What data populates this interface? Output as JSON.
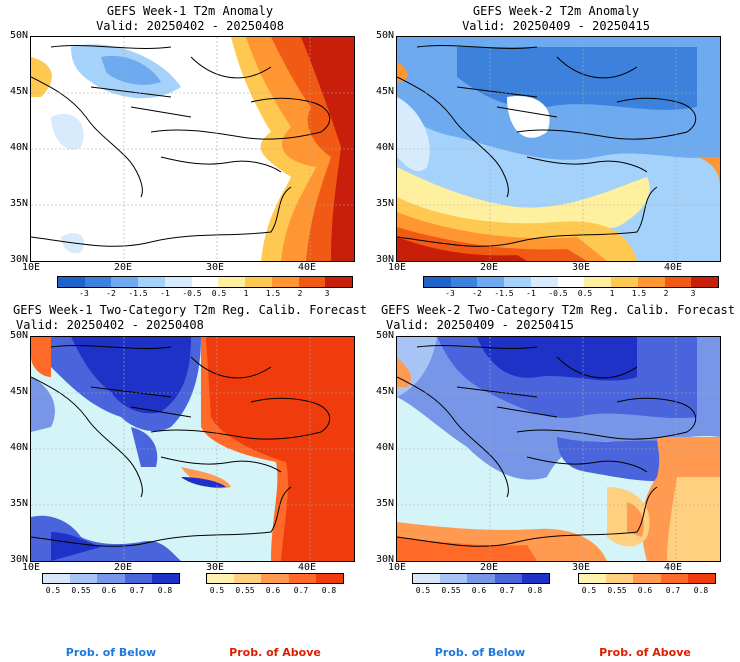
{
  "panels": [
    {
      "title": "GEFS Week-1 T2m Anomaly",
      "valid": "Valid: 20250402 - 20250408"
    },
    {
      "title": "GEFS Week-2 T2m Anomaly",
      "valid": "Valid: 20250409 - 20250415"
    },
    {
      "title": "GEFS Week-1 Two-Category T2m Reg. Calib. Forecast",
      "valid": "Valid: 20250402 - 20250408"
    },
    {
      "title": "GEFS Week-2 Two-Category T2m Reg. Calib. Forecast",
      "valid": "Valid: 20250409 - 20250415"
    }
  ],
  "axes": {
    "lat_labels": [
      "50N",
      "45N",
      "40N",
      "35N",
      "30N"
    ],
    "lon_labels": [
      "10E",
      "20E",
      "30E",
      "40E"
    ]
  },
  "anomaly_colorbar": {
    "labels": [
      "-3",
      "-2",
      "-1.5",
      "-1",
      "-0.5",
      "0.5",
      "1",
      "1.5",
      "2",
      "3"
    ],
    "colors": [
      "#1e64c8",
      "#3c82dc",
      "#6eaaf0",
      "#a5d2fa",
      "#d7ebfc",
      "#ffffff",
      "#fff0a0",
      "#ffc850",
      "#ff9632",
      "#f05a14",
      "#c81e0a"
    ]
  },
  "prob_colorbar": {
    "below_labels": [
      "0.5",
      "0.55",
      "0.6",
      "0.7",
      "0.8"
    ],
    "above_labels": [
      "0.5",
      "0.55",
      "0.6",
      "0.7",
      "0.8"
    ],
    "below_colors": [
      "#d8e6fa",
      "#a8c4f4",
      "#7896e8",
      "#4a64dc",
      "#1e32c8"
    ],
    "above_colors": [
      "#fff2b0",
      "#ffd080",
      "#ff9a50",
      "#ff6a28",
      "#f03c0c"
    ],
    "below_label": "Prob. of Below",
    "above_label": "Prob. of Above"
  },
  "colors": {
    "sea_prob": "#d4f4f8",
    "land_neutral": "#ffffff",
    "below_text": "#1e78dc",
    "above_text": "#dc1e00"
  }
}
